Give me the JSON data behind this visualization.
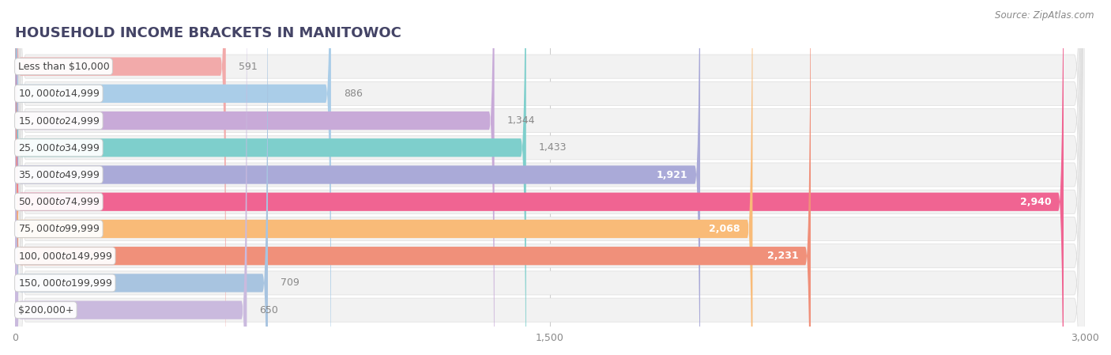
{
  "title": "HOUSEHOLD INCOME BRACKETS IN MANITOWOC",
  "source": "Source: ZipAtlas.com",
  "categories": [
    "Less than $10,000",
    "$10,000 to $14,999",
    "$15,000 to $24,999",
    "$25,000 to $34,999",
    "$35,000 to $49,999",
    "$50,000 to $74,999",
    "$75,000 to $99,999",
    "$100,000 to $149,999",
    "$150,000 to $199,999",
    "$200,000+"
  ],
  "values": [
    591,
    886,
    1344,
    1433,
    1921,
    2940,
    2068,
    2231,
    709,
    650
  ],
  "bar_colors": [
    "#F2AAAA",
    "#AACDE8",
    "#C8AAD8",
    "#7ECFCC",
    "#AAAAD8",
    "#F06492",
    "#F9BB78",
    "#F0907A",
    "#A8C4E0",
    "#CABADE"
  ],
  "value_inside_color": "#ffffff",
  "value_outside_color": "#888888",
  "value_inside_threshold": 1800,
  "xlim": [
    0,
    3000
  ],
  "xticks": [
    0,
    1500,
    3000
  ],
  "background_color": "#ffffff",
  "row_bg_color": "#f0f0f0",
  "title_fontsize": 13,
  "label_fontsize": 9,
  "value_fontsize": 9,
  "title_color": "#444466",
  "source_color": "#888888"
}
